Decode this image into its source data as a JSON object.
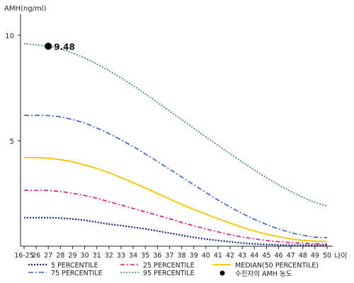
{
  "chart_data": {
    "type": "line",
    "ylabel": "AMH(ng/ml)",
    "xlabel": "나이",
    "x_tick_labels": [
      "16-25",
      "26",
      "27",
      "28",
      "29",
      "30",
      "31",
      "32",
      "33",
      "34",
      "35",
      "36",
      "37",
      "38",
      "39",
      "40",
      "41",
      "42",
      "43",
      "44",
      "45",
      "46",
      "47",
      "48",
      "49",
      "50"
    ],
    "ylim": [
      0,
      11
    ],
    "y_ticks": [
      5,
      10
    ],
    "y_tick_labels": [
      "5",
      "10"
    ],
    "grid": false,
    "legend_position": "bottom",
    "series": [
      {
        "name": "5 PERCENTILE",
        "color": "#1a237e",
        "dash": "2,2",
        "width": 2.2,
        "values": [
          1.35,
          1.35,
          1.35,
          1.33,
          1.29,
          1.23,
          1.14,
          1.05,
          0.98,
          0.9,
          0.82,
          0.72,
          0.62,
          0.52,
          0.42,
          0.34,
          0.27,
          0.21,
          0.15,
          0.11,
          0.08,
          0.06,
          0.05,
          0.05,
          0.05,
          0.05
        ]
      },
      {
        "name": "25 PERCENTILE",
        "color": "#e0147a",
        "dash": "6,3,2,3",
        "width": 1.6,
        "values": [
          2.65,
          2.65,
          2.64,
          2.59,
          2.51,
          2.4,
          2.27,
          2.11,
          1.95,
          1.79,
          1.63,
          1.47,
          1.3,
          1.13,
          0.97,
          0.82,
          0.68,
          0.55,
          0.44,
          0.35,
          0.27,
          0.21,
          0.17,
          0.14,
          0.12,
          0.11
        ]
      },
      {
        "name": "MEDIAN(50 PERCENTILE)",
        "color": "#f5c400",
        "dash": "",
        "width": 1.8,
        "values": [
          4.2,
          4.2,
          4.17,
          4.1,
          4.0,
          3.85,
          3.68,
          3.48,
          3.25,
          3.01,
          2.76,
          2.5,
          2.24,
          1.98,
          1.74,
          1.52,
          1.3,
          1.1,
          0.9,
          0.72,
          0.57,
          0.45,
          0.35,
          0.28,
          0.24,
          0.22
        ]
      },
      {
        "name": "75 PERCENTILE",
        "color": "#3a5fcd",
        "dash": "7,3,2,3",
        "width": 1.6,
        "values": [
          6.2,
          6.2,
          6.19,
          6.13,
          6.0,
          5.84,
          5.6,
          5.34,
          5.04,
          4.72,
          4.38,
          4.02,
          3.65,
          3.28,
          2.91,
          2.55,
          2.19,
          1.86,
          1.55,
          1.27,
          1.03,
          0.82,
          0.65,
          0.52,
          0.43,
          0.4
        ]
      },
      {
        "name": "95 PERCENTILE",
        "color": "#2e8b57",
        "dash": "2,2",
        "width": 1.6,
        "values": [
          9.6,
          9.54,
          9.48,
          9.35,
          9.16,
          8.92,
          8.64,
          8.32,
          7.98,
          7.61,
          7.22,
          6.82,
          6.41,
          6.0,
          5.59,
          5.18,
          4.78,
          4.38,
          3.99,
          3.61,
          3.25,
          2.91,
          2.6,
          2.32,
          2.08,
          1.9
        ]
      }
    ],
    "marker": {
      "x_label": "27",
      "value": 9.48,
      "label": "9.48",
      "legend_label": "수진자의 AMH 농도"
    }
  }
}
